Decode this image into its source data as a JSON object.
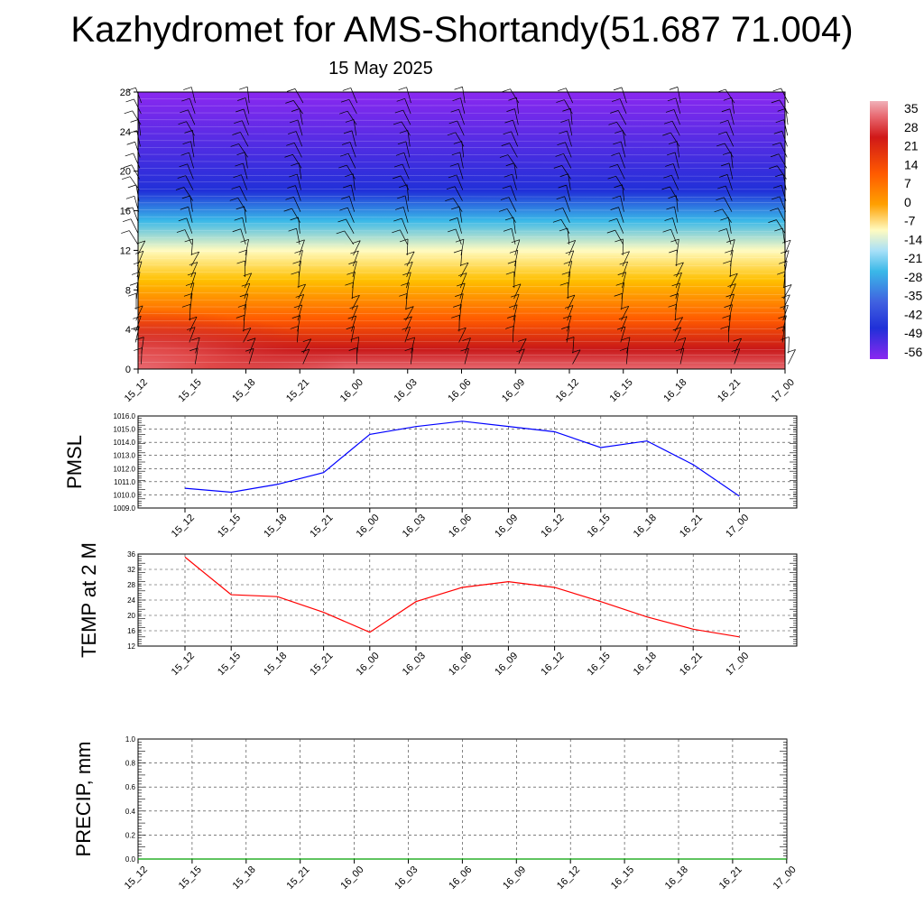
{
  "title": "Kazhydromet for AMS-Shortandy(51.687 71.004)",
  "subtitle": "15 May 2025",
  "chart_data": [
    {
      "type": "heatmap",
      "name": "temperature-wind-cross-section",
      "title": "",
      "x_tick_labels": [
        "15_12",
        "15_15",
        "15_18",
        "15_21",
        "16_00",
        "16_03",
        "16_06",
        "16_09",
        "16_12",
        "16_15",
        "16_18",
        "16_21",
        "17_00"
      ],
      "y_ticks": [
        0,
        4,
        8,
        12,
        16,
        20,
        24,
        28
      ],
      "ylim": [
        0,
        28
      ],
      "colorbar_labels": [
        "35",
        "28",
        "21",
        "14",
        "7",
        "0",
        "-7",
        "-14",
        "-21",
        "-28",
        "-35",
        "-42",
        "-49",
        "-56"
      ],
      "colorbar_values": [
        35,
        28,
        21,
        14,
        7,
        0,
        -7,
        -14,
        -21,
        -28,
        -35,
        -42,
        -49,
        -56
      ],
      "colors": {
        "level_0": "#e86870",
        "level_2": "#c81818",
        "level_5": "#ff5a00",
        "level_9": "#ffc000",
        "level_12": "#fffbc0",
        "level_15": "#3ab8e8",
        "level_18": "#2030d8",
        "level_28": "#8a28f0"
      },
      "profile_levels": [
        0,
        2,
        5,
        9,
        12,
        15,
        18,
        28
      ],
      "profile_temps": [
        32,
        28,
        21,
        7,
        -10,
        -28,
        -56,
        -56
      ],
      "surface_warm_core_max": 35,
      "wind_barbs": true
    },
    {
      "type": "line",
      "name": "pmsl",
      "ylabel": "PMSL",
      "x_tick_labels": [
        "15_12",
        "15_15",
        "15_18",
        "15_21",
        "16_00",
        "16_03",
        "16_06",
        "16_09",
        "16_12",
        "16_15",
        "16_18",
        "16_21",
        "17_00"
      ],
      "y_tick_labels": [
        "1016.0",
        "1015.0",
        "1014.0",
        "1013.0",
        "1012.0",
        "1011.0",
        "1010.0",
        "1009.0"
      ],
      "ylim": [
        1009,
        1016
      ],
      "grid": true,
      "color": "#0000ff",
      "values": [
        1010.5,
        1010.2,
        1010.8,
        1011.7,
        1014.6,
        1015.2,
        1015.6,
        1015.2,
        1014.8,
        1013.6,
        1014.1,
        1012.3,
        1009.9
      ]
    },
    {
      "type": "line",
      "name": "temp-2m",
      "ylabel": "TEMP at 2 M",
      "x_tick_labels": [
        "15_12",
        "15_15",
        "15_18",
        "15_21",
        "16_00",
        "16_03",
        "16_06",
        "16_09",
        "16_12",
        "16_15",
        "16_18",
        "16_21",
        "17_00"
      ],
      "y_tick_labels": [
        "36",
        "32",
        "28",
        "24",
        "20",
        "16",
        "12"
      ],
      "ylim": [
        12,
        36
      ],
      "grid": true,
      "color": "#ff0000",
      "values": [
        35.2,
        25.4,
        24.9,
        20.8,
        15.6,
        23.6,
        27.3,
        28.8,
        27.3,
        23.6,
        19.6,
        16.4,
        14.4
      ]
    },
    {
      "type": "line",
      "name": "precip",
      "ylabel": "PRECIP, mm",
      "x_tick_labels": [
        "15_12",
        "15_15",
        "15_18",
        "15_21",
        "16_00",
        "16_03",
        "16_06",
        "16_09",
        "16_12",
        "16_15",
        "16_18",
        "16_21",
        "17_00"
      ],
      "y_tick_labels": [
        "1.0",
        "0.8",
        "0.6",
        "0.4",
        "0.2",
        "0.0"
      ],
      "ylim": [
        0,
        1
      ],
      "grid": true,
      "color": "#00a000",
      "values": [
        0,
        0,
        0,
        0,
        0,
        0,
        0,
        0,
        0,
        0,
        0,
        0,
        0
      ]
    }
  ]
}
